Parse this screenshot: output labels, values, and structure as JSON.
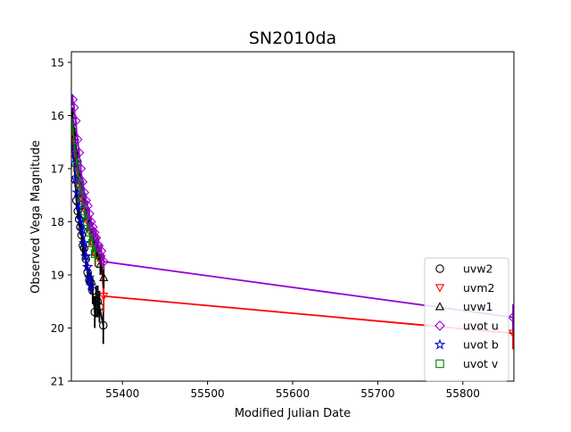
{
  "chart_data": {
    "type": "scatter",
    "title": "SN2010da",
    "xlabel": "Modified Julian Date",
    "ylabel": "Observed Vega Magnitude",
    "xlim": [
      55340,
      55860
    ],
    "ylim": [
      21,
      14.8
    ],
    "y_inverted": true,
    "grid": false,
    "legend_position": "lower-right",
    "x_ticks": [
      55400,
      55500,
      55600,
      55700,
      55800
    ],
    "y_ticks": [
      15,
      16,
      17,
      18,
      19,
      20,
      21
    ],
    "series": [
      {
        "name": "uvw2",
        "marker": "circle",
        "color": "#000000",
        "filled": false,
        "x": [
          55341.5,
          55343,
          55344.5,
          55346,
          55347.5,
          55349,
          55350.5,
          55352,
          55353.5,
          55355,
          55357,
          55359,
          55361,
          55363,
          55365,
          55367.5,
          55369,
          55371,
          55373,
          55377.5
        ],
        "y": [
          16.3,
          16.7,
          17.2,
          17.6,
          17.8,
          17.95,
          18.1,
          18.25,
          18.45,
          18.5,
          18.7,
          18.95,
          19.1,
          19.15,
          19.3,
          19.7,
          19.5,
          19.5,
          19.6,
          19.95
        ],
        "err": [
          0.15,
          0.15,
          0.15,
          0.15,
          0.15,
          0.15,
          0.15,
          0.2,
          0.2,
          0.2,
          0.2,
          0.2,
          0.2,
          0.2,
          0.25,
          0.3,
          0.3,
          0.3,
          0.3,
          0.35
        ]
      },
      {
        "name": "uvm2",
        "marker": "triangle-down",
        "color": "#ff0000",
        "filled": false,
        "x": [
          55341.5,
          55344,
          55347,
          55350,
          55353,
          55356,
          55359,
          55362,
          55365,
          55368,
          55371,
          55375,
          55378,
          55859
        ],
        "y": [
          16.4,
          16.8,
          17.1,
          17.4,
          17.6,
          17.8,
          18.0,
          18.2,
          18.4,
          18.6,
          18.5,
          18.7,
          19.4,
          20.1
        ],
        "err": [
          0.2,
          0.2,
          0.2,
          0.2,
          0.2,
          0.2,
          0.2,
          0.25,
          0.25,
          0.25,
          0.25,
          0.3,
          0.3,
          0.3
        ]
      },
      {
        "name": "uvw1",
        "marker": "triangle-up",
        "color": "#000000",
        "filled": false,
        "x": [
          55341.5,
          55344,
          55347,
          55350,
          55353,
          55356,
          55359,
          55362,
          55366,
          55370,
          55374,
          55378
        ],
        "y": [
          16.0,
          16.4,
          16.8,
          17.2,
          17.45,
          17.7,
          17.9,
          18.1,
          18.3,
          18.5,
          18.8,
          19.05
        ],
        "err": [
          0.15,
          0.15,
          0.15,
          0.15,
          0.15,
          0.15,
          0.15,
          0.2,
          0.2,
          0.2,
          0.2,
          0.2
        ]
      },
      {
        "name": "uvot u",
        "marker": "diamond",
        "color": "#9400d3",
        "filled": false,
        "x": [
          55341.5,
          55343,
          55345,
          55347,
          55349,
          55351,
          55353,
          55355,
          55357,
          55359,
          55361,
          55363,
          55365,
          55367,
          55369,
          55372,
          55375,
          55378,
          55859
        ],
        "y": [
          15.7,
          15.85,
          16.1,
          16.45,
          16.7,
          17.0,
          17.25,
          17.45,
          17.6,
          17.7,
          17.85,
          18.0,
          18.1,
          18.2,
          18.3,
          18.45,
          18.55,
          18.75,
          19.8
        ],
        "err": [
          0.1,
          0.1,
          0.1,
          0.1,
          0.1,
          0.1,
          0.1,
          0.1,
          0.1,
          0.1,
          0.1,
          0.1,
          0.1,
          0.1,
          0.15,
          0.15,
          0.15,
          0.15,
          0.25
        ]
      },
      {
        "name": "uvot b",
        "marker": "star",
        "color": "#0000cd",
        "filled": false,
        "x": [
          55341,
          55343,
          55345,
          55347,
          55349,
          55351,
          55353,
          55355,
          55357,
          55359,
          55361,
          55363
        ],
        "y": [
          16.6,
          16.9,
          17.2,
          17.45,
          17.7,
          17.95,
          18.15,
          18.4,
          18.65,
          18.85,
          19.05,
          19.2
        ],
        "err": [
          0.1,
          0.1,
          0.1,
          0.1,
          0.1,
          0.1,
          0.1,
          0.1,
          0.1,
          0.1,
          0.1,
          0.15
        ]
      },
      {
        "name": "uvot v",
        "marker": "square",
        "color": "#008000",
        "filled": false,
        "x": [
          55341.5,
          55344,
          55347,
          55350,
          55353,
          55356,
          55359,
          55362,
          55365,
          55368
        ],
        "y": [
          16.2,
          16.6,
          16.95,
          17.3,
          17.55,
          17.8,
          18.0,
          18.2,
          18.4,
          18.6
        ],
        "err": [
          0.15,
          0.15,
          0.15,
          0.15,
          0.15,
          0.15,
          0.2,
          0.2,
          0.2,
          0.2
        ]
      }
    ]
  }
}
